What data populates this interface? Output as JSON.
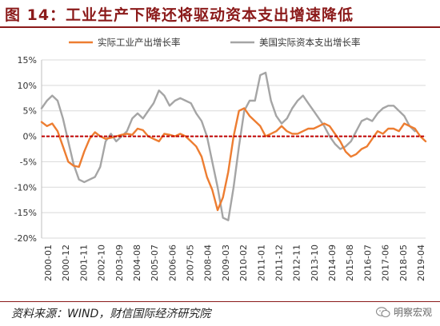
{
  "figure": {
    "title": "图 14：工业生产下降还将驱动资本支出增速降低",
    "source": "资料来源：WIND，财信国际经济研究院",
    "brand": "明察宏观"
  },
  "colors": {
    "series_1": "#ed7d31",
    "series_2": "#a5a5a5",
    "zero_line": "#c00000",
    "title": "#8b1a1a"
  },
  "chart_data": {
    "type": "line",
    "title": "",
    "xlabel": "",
    "ylabel": "",
    "ylim": [
      -20,
      15
    ],
    "y_ticks": [
      "15%",
      "10%",
      "5%",
      "0%",
      "-5%",
      "-10%",
      "-15%",
      "-20%"
    ],
    "y_tick_values": [
      15,
      10,
      5,
      0,
      -5,
      -10,
      -15,
      -20
    ],
    "x_ticks": [
      "2000-01",
      "2000-12",
      "2001-11",
      "2002-10",
      "2003-09",
      "2004-08",
      "2005-07",
      "2006-06",
      "2007-05",
      "2008-04",
      "2009-03",
      "2010-02",
      "2011-01",
      "2011-12",
      "2012-11",
      "2013-10",
      "2014-09",
      "2015-08",
      "2016-07",
      "2017-06",
      "2018-05",
      "2019-04"
    ],
    "grid": true,
    "legend_position": "top",
    "reference_line": 0,
    "series": [
      {
        "name": "实际工业产出增长率",
        "values": [
          2.8,
          2.0,
          2.5,
          1.0,
          -2.0,
          -5.0,
          -5.8,
          -6.0,
          -3.0,
          -0.5,
          0.8,
          0.0,
          -0.5,
          -0.3,
          0.0,
          0.3,
          0.5,
          0.3,
          1.5,
          1.2,
          0.0,
          -0.5,
          -1.0,
          0.5,
          0.3,
          0.0,
          0.5,
          0.0,
          -1.0,
          -2.0,
          -4.0,
          -8.0,
          -10.5,
          -14.5,
          -12.0,
          -7.0,
          0.0,
          5.0,
          5.5,
          4.0,
          3.0,
          2.0,
          0.0,
          0.5,
          1.0,
          2.0,
          1.0,
          0.5,
          0.5,
          1.0,
          1.5,
          1.5,
          2.0,
          2.5,
          2.0,
          0.5,
          -1.0,
          -3.0,
          -4.0,
          -3.5,
          -2.5,
          -2.0,
          -0.5,
          1.0,
          0.5,
          1.5,
          1.5,
          1.0,
          2.5,
          2.0,
          1.5,
          0.0,
          -1.0
        ]
      },
      {
        "name": "美国实际资本支出增长率",
        "values": [
          5.5,
          7.0,
          8.0,
          7.0,
          3.5,
          -1.0,
          -5.5,
          -8.5,
          -9.0,
          -8.5,
          -8.0,
          -6.0,
          -1.0,
          0.5,
          -1.0,
          0.0,
          1.0,
          3.5,
          4.5,
          3.5,
          5.0,
          6.5,
          9.0,
          8.0,
          6.0,
          7.0,
          7.5,
          7.0,
          6.5,
          4.5,
          3.0,
          0.0,
          -5.0,
          -10.0,
          -16.0,
          -16.5,
          -10.0,
          -2.0,
          5.0,
          7.0,
          7.0,
          12.0,
          12.5,
          7.0,
          4.0,
          2.5,
          3.5,
          5.5,
          7.0,
          8.0,
          6.5,
          5.0,
          3.5,
          2.0,
          0.0,
          -1.5,
          -2.5,
          -2.0,
          -1.0,
          1.0,
          3.0,
          3.5,
          3.0,
          4.5,
          5.5,
          6.0,
          6.0,
          5.0,
          4.0,
          2.0,
          1.0
        ]
      }
    ]
  }
}
